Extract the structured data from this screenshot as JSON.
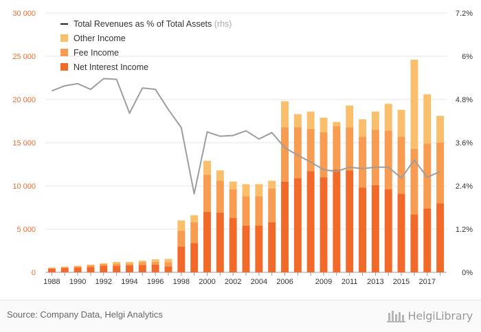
{
  "chart_data": {
    "type": "bar",
    "stacked": true,
    "categories": [
      "1988",
      "1989",
      "1990",
      "1991",
      "1992",
      "1993",
      "1994",
      "1995",
      "1996",
      "1997",
      "1998",
      "1999",
      "2000",
      "2001",
      "2002",
      "2003",
      "2004",
      "2005",
      "2006",
      "2007",
      "2008",
      "2009",
      "2010",
      "2011",
      "2012",
      "2013",
      "2014",
      "2015",
      "2016",
      "2017",
      "2018"
    ],
    "x_tick_labels": [
      "1988",
      "1990",
      "1992",
      "1994",
      "1996",
      "1998",
      "2000",
      "2002",
      "2004",
      "2006",
      "2009",
      "2011",
      "2013",
      "2015",
      "2017"
    ],
    "series": [
      {
        "name": "Net Interest Income",
        "type": "bar",
        "axis": "left",
        "color": "#f26a2a",
        "values": [
          400,
          500,
          550,
          600,
          750,
          750,
          800,
          850,
          900,
          700,
          3000,
          3400,
          7000,
          6900,
          6300,
          5400,
          5400,
          5800,
          10500,
          10900,
          11700,
          11000,
          11900,
          11800,
          9800,
          10100,
          9600,
          9100,
          6700,
          7400,
          8000
        ]
      },
      {
        "name": "Fee Income",
        "type": "bar",
        "axis": "left",
        "color": "#f79c50",
        "values": [
          100,
          100,
          150,
          200,
          200,
          250,
          200,
          300,
          300,
          450,
          1800,
          2400,
          4300,
          3700,
          3300,
          3400,
          3400,
          3900,
          6300,
          5900,
          4900,
          5200,
          5000,
          5000,
          5900,
          6400,
          6800,
          6600,
          7600,
          7500,
          7000
        ]
      },
      {
        "name": "Other Income",
        "type": "bar",
        "axis": "left",
        "color": "#fabf6d",
        "values": [
          50,
          50,
          50,
          100,
          100,
          200,
          200,
          200,
          300,
          400,
          1200,
          800,
          1600,
          1200,
          900,
          1400,
          1400,
          900,
          3000,
          1500,
          2000,
          1700,
          500,
          2500,
          2000,
          2100,
          3100,
          3100,
          10300,
          5700,
          3100
        ]
      },
      {
        "name": "Total Revenues as % of Total Assets",
        "name_note": "(rhs)",
        "type": "line",
        "axis": "right",
        "color": "#9d9d9d",
        "legend_color": "#222222",
        "values": [
          5.04,
          5.18,
          5.24,
          5.08,
          5.38,
          5.36,
          4.42,
          5.12,
          5.08,
          4.52,
          4.02,
          2.18,
          3.9,
          3.78,
          3.8,
          3.93,
          3.7,
          3.88,
          3.46,
          3.25,
          3.06,
          2.85,
          2.8,
          2.92,
          2.88,
          2.92,
          2.92,
          2.62,
          3.12,
          2.64,
          2.8
        ]
      }
    ],
    "y_left": {
      "min": 0,
      "max": 30000,
      "ticks": [
        "0",
        "5 000",
        "10 000",
        "15 000",
        "20 000",
        "25 000",
        "30 000"
      ],
      "tick_values": [
        0,
        5000,
        10000,
        15000,
        20000,
        25000,
        30000
      ],
      "tick_color": "#f26a2a"
    },
    "y_right": {
      "min": 0,
      "max": 7.2,
      "ticks": [
        "0%",
        "1.2%",
        "2.4%",
        "3.6%",
        "4.8%",
        "6%",
        "7.2%"
      ],
      "tick_values": [
        0,
        1.2,
        2.4,
        3.6,
        4.8,
        6,
        7.2
      ]
    },
    "grid": "horizontal",
    "legend_position": "top-left",
    "legend_order": [
      3,
      2,
      1,
      0
    ]
  },
  "footer": {
    "source": "Source: Company Data, Helgi Analytics",
    "brand": "HelgiLibrary"
  }
}
